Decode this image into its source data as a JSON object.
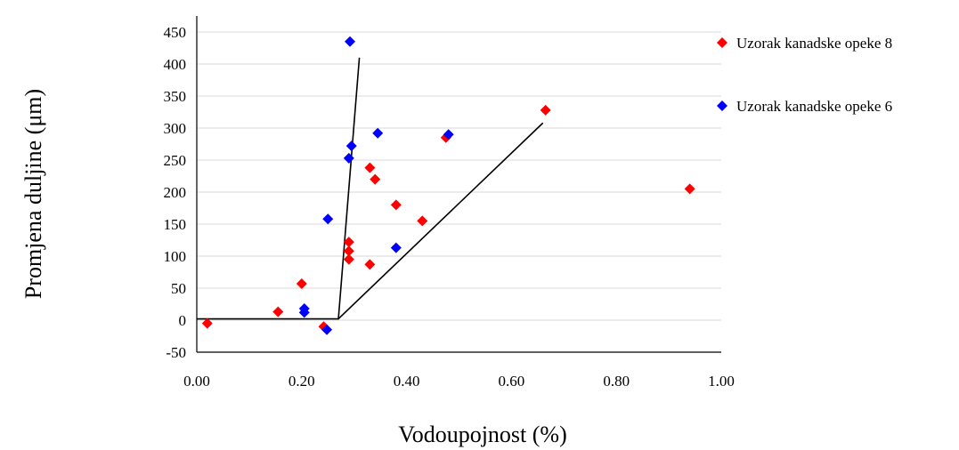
{
  "chart_data": {
    "type": "scatter",
    "title": "",
    "xlabel": "Vodoupojnost (%)",
    "ylabel": "Promjena duljine (μm)",
    "xlim": [
      0,
      1
    ],
    "ylim": [
      -50,
      450
    ],
    "x_ticks": [
      0,
      0.2,
      0.4,
      0.6,
      0.8,
      1.0
    ],
    "x_tick_labels": [
      "0.00",
      "0.20",
      "0.40",
      "0.60",
      "0.80",
      "1.00"
    ],
    "y_ticks": [
      -50,
      0,
      50,
      100,
      150,
      200,
      250,
      300,
      350,
      400,
      450
    ],
    "y_tick_labels": [
      "-50",
      "0",
      "50",
      "100",
      "150",
      "200",
      "250",
      "300",
      "350",
      "400",
      "450"
    ],
    "grid": "horizontal",
    "legend_position": "right",
    "series": [
      {
        "name": "Uzorak kanadske opeke 8",
        "color": "#ff0000",
        "points": [
          [
            0.02,
            -5
          ],
          [
            0.155,
            13
          ],
          [
            0.2,
            57
          ],
          [
            0.242,
            -10
          ],
          [
            0.29,
            122
          ],
          [
            0.29,
            108
          ],
          [
            0.29,
            95
          ],
          [
            0.33,
            87
          ],
          [
            0.33,
            238
          ],
          [
            0.34,
            220
          ],
          [
            0.38,
            180
          ],
          [
            0.43,
            155
          ],
          [
            0.475,
            285
          ],
          [
            0.665,
            328
          ],
          [
            0.94,
            205
          ]
        ]
      },
      {
        "name": "Uzorak kanadske opeke 6",
        "color": "#0000ff",
        "points": [
          [
            0.205,
            18
          ],
          [
            0.205,
            12
          ],
          [
            0.248,
            -15
          ],
          [
            0.25,
            158
          ],
          [
            0.29,
            253
          ],
          [
            0.295,
            272
          ],
          [
            0.345,
            292
          ],
          [
            0.38,
            113
          ],
          [
            0.48,
            290
          ],
          [
            0.292,
            435
          ]
        ]
      }
    ],
    "trend_lines": [
      {
        "color": "#000000",
        "points": [
          [
            0.0,
            2
          ],
          [
            0.27,
            2
          ],
          [
            0.31,
            410
          ]
        ]
      },
      {
        "color": "#000000",
        "points": [
          [
            0.27,
            2
          ],
          [
            0.66,
            308
          ]
        ]
      }
    ]
  }
}
